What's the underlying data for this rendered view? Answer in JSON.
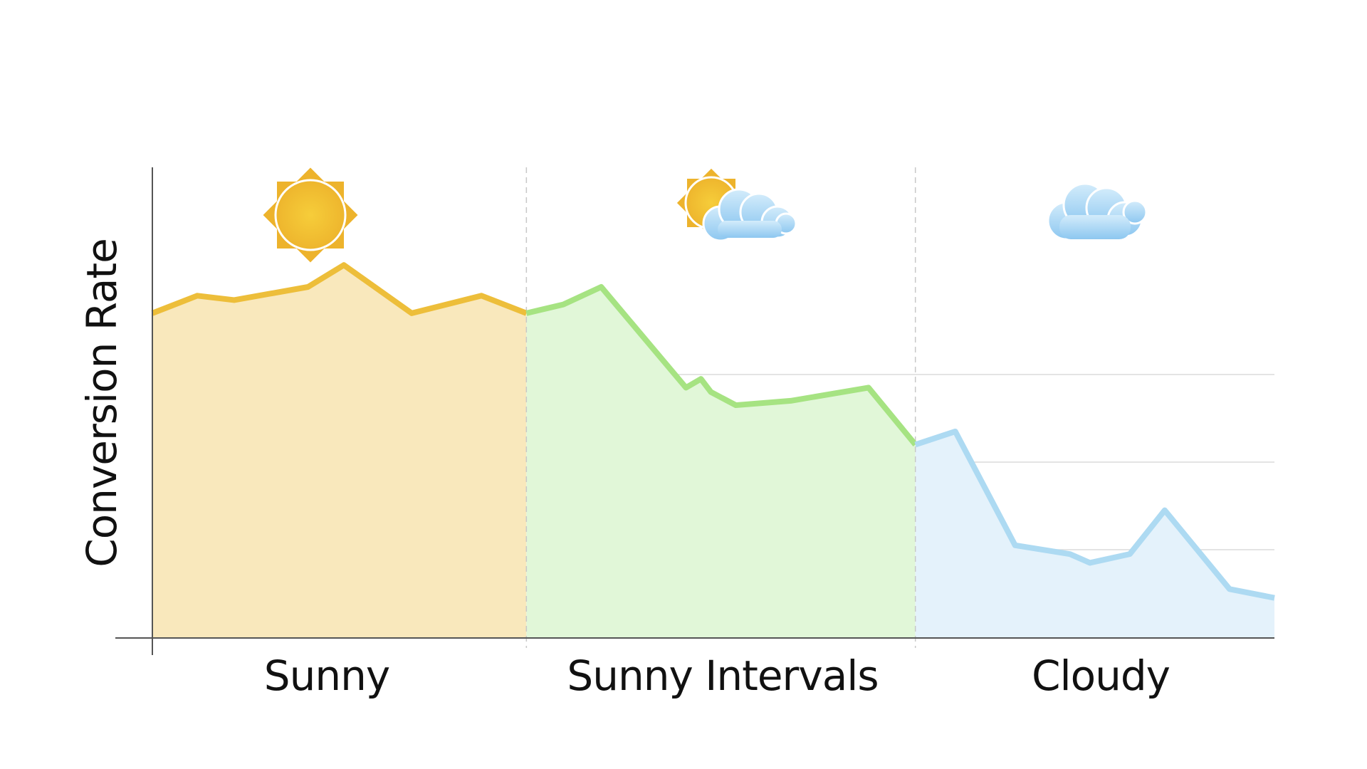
{
  "chart_data": {
    "type": "area",
    "title": "",
    "xlabel": "",
    "ylabel": "Conversion Rate",
    "ylim": [
      0,
      100
    ],
    "grid": true,
    "legend": "none",
    "categories": [
      "Sunny",
      "Sunny Intervals",
      "Cloudy"
    ],
    "segments": [
      {
        "category": "Sunny",
        "icon": "sun-icon",
        "color": "#EDBE3A",
        "fill": "#F9E8BC",
        "x": [
          0,
          4.5,
          8.2,
          15.6,
          19.2,
          26,
          33,
          37.5
        ],
        "y": [
          74,
          78,
          77,
          80,
          85,
          74,
          78,
          74
        ]
      },
      {
        "category": "Sunny Intervals",
        "icon": "sun-behind-cloud-icon",
        "color": "#A6E382",
        "fill": "#E1F7D8",
        "x": [
          37.5,
          41.2,
          45,
          53.5,
          55,
          56,
          58.5,
          64,
          71.8,
          76.5
        ],
        "y": [
          74,
          76,
          80,
          57,
          59,
          56,
          53,
          54,
          57,
          44
        ]
      },
      {
        "category": "Cloudy",
        "icon": "cloud-icon",
        "color": "#ADDAF2",
        "fill": "#E4F2FB",
        "x": [
          76.5,
          80.5,
          86.5,
          92,
          94,
          98,
          101.5,
          108,
          112.5
        ],
        "y": [
          44,
          47,
          21,
          19,
          17,
          19,
          29,
          11,
          9
        ]
      }
    ]
  }
}
